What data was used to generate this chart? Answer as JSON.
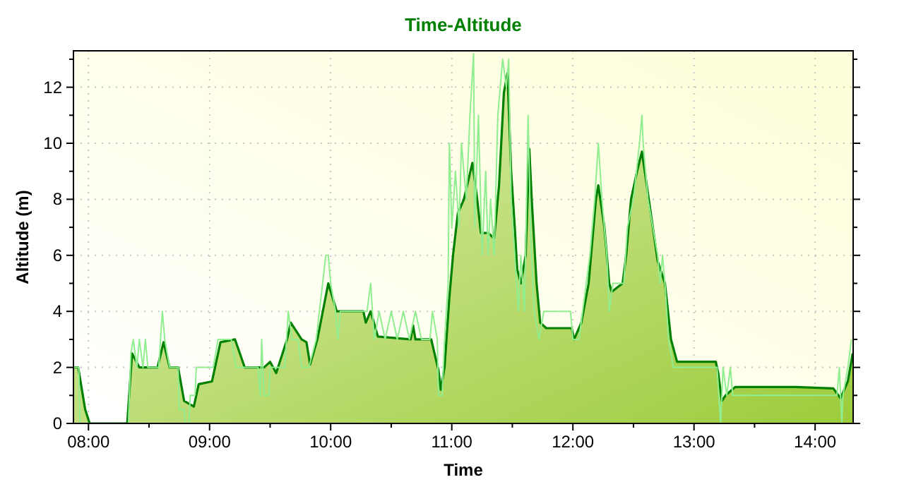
{
  "chart_data": {
    "type": "area",
    "title": "Time-Altitude",
    "xlabel": "Time",
    "ylabel": "Altitude (m)",
    "xlim": [
      7.876,
      14.314
    ],
    "xticks": [
      {
        "value": 8,
        "label": "08:00"
      },
      {
        "value": 8.5,
        "label": null
      },
      {
        "value": 9,
        "label": "09:00"
      },
      {
        "value": 9.5,
        "label": null
      },
      {
        "value": 10,
        "label": "10:00"
      },
      {
        "value": 10.5,
        "label": null
      },
      {
        "value": 11,
        "label": "11:00"
      },
      {
        "value": 11.5,
        "label": null
      },
      {
        "value": 12,
        "label": "12:00"
      },
      {
        "value": 12.5,
        "label": null
      },
      {
        "value": 13,
        "label": "13:00"
      },
      {
        "value": 13.5,
        "label": null
      },
      {
        "value": 14,
        "label": "14:00"
      }
    ],
    "ylim": [
      0,
      13.3
    ],
    "yticks": [
      0,
      {
        "value": 1,
        "label": null
      },
      2,
      {
        "value": 3,
        "label": null
      },
      4,
      {
        "value": 5,
        "label": null
      },
      6,
      {
        "value": 7,
        "label": null
      },
      8,
      {
        "value": 9,
        "label": null
      },
      10,
      {
        "value": 11,
        "label": null
      },
      12,
      {
        "value": 13,
        "label": null
      }
    ],
    "grid": true,
    "series": [
      {
        "color": "#008000",
        "x": [
          7.88,
          7.915,
          7.973,
          8.01,
          8.32,
          8.36,
          8.42,
          8.57,
          8.62,
          8.67,
          8.74,
          8.79,
          8.87,
          8.91,
          9.02,
          9.09,
          9.21,
          9.29,
          9.45,
          9.5,
          9.55,
          9.64,
          9.67,
          9.76,
          9.8,
          9.83,
          9.89,
          9.98,
          10.05,
          10.1,
          10.27,
          10.29,
          10.33,
          10.39,
          10.66,
          10.68,
          10.7,
          10.83,
          10.89,
          10.91,
          10.94,
          10.98,
          11.01,
          11.05,
          11.1,
          11.17,
          11.21,
          11.24,
          11.3,
          11.35,
          11.39,
          11.43,
          11.46,
          11.49,
          11.52,
          11.54,
          11.57,
          11.61,
          11.64,
          11.66,
          11.7,
          11.73,
          11.78,
          11.99,
          12.01,
          12.07,
          12.13,
          12.19,
          12.21,
          12.26,
          12.3,
          12.32,
          12.41,
          12.44,
          12.48,
          12.53,
          12.57,
          12.61,
          12.66,
          12.7,
          12.76,
          12.81,
          12.86,
          13.18,
          13.2,
          13.23,
          13.26,
          13.34,
          13.84,
          14.15,
          14.21,
          14.27,
          14.31
        ],
        "values": [
          2.0,
          2.0,
          0.5,
          0,
          0,
          2.5,
          2.0,
          2.0,
          2.9,
          2.0,
          2.0,
          0.8,
          0.6,
          1.4,
          1.5,
          2.9,
          3.0,
          2.0,
          2.0,
          2.2,
          1.8,
          3.0,
          3.6,
          3.0,
          2.9,
          2.1,
          3.0,
          5.0,
          4.0,
          4.0,
          4.0,
          3.6,
          4.0,
          3.1,
          3.0,
          3.5,
          3.0,
          3.0,
          1.9,
          1.2,
          2.0,
          4.5,
          6.0,
          7.5,
          8.0,
          9.3,
          8.0,
          6.8,
          6.8,
          6.6,
          8.5,
          11.8,
          12.5,
          9.0,
          7.0,
          5.5,
          5.0,
          6.0,
          9.8,
          8.0,
          5.0,
          3.6,
          3.4,
          3.4,
          3.0,
          3.6,
          5.0,
          8.0,
          8.5,
          7.0,
          5.0,
          4.7,
          5.0,
          6.0,
          8.0,
          9.0,
          9.7,
          8.5,
          7.0,
          5.8,
          5.0,
          3.0,
          2.2,
          2.2,
          1.8,
          0.8,
          1.0,
          1.3,
          1.3,
          1.25,
          0.9,
          1.5,
          2.5
        ]
      },
      {
        "type": "line",
        "color": "#90ee90",
        "x": [
          7.88,
          7.92,
          7.93,
          8.33,
          8.35,
          8.37,
          8.4,
          8.42,
          8.45,
          8.47,
          8.49,
          8.58,
          8.61,
          8.63,
          8.67,
          8.74,
          8.75,
          8.79,
          8.8,
          8.83,
          8.84,
          8.88,
          8.89,
          9.03,
          9.07,
          9.18,
          9.22,
          9.4,
          9.42,
          9.43,
          9.45,
          9.49,
          9.5,
          9.62,
          9.65,
          9.68,
          9.73,
          9.76,
          9.82,
          9.88,
          9.96,
          9.98,
          10.0,
          10.04,
          10.06,
          10.08,
          10.3,
          10.33,
          10.36,
          10.4,
          10.45,
          10.5,
          10.55,
          10.6,
          10.65,
          10.7,
          10.75,
          10.82,
          10.84,
          10.88,
          10.89,
          10.92,
          10.94,
          10.97,
          10.98,
          11.0,
          11.03,
          11.06,
          11.08,
          11.12,
          11.15,
          11.18,
          11.19,
          11.22,
          11.25,
          11.28,
          11.3,
          11.32,
          11.35,
          11.38,
          11.4,
          11.42,
          11.45,
          11.47,
          11.49,
          11.52,
          11.55,
          11.57,
          11.6,
          11.63,
          11.65,
          11.68,
          11.72,
          11.76,
          11.98,
          12.0,
          12.05,
          12.08,
          12.14,
          12.18,
          12.21,
          12.24,
          12.28,
          12.3,
          12.33,
          12.42,
          12.45,
          12.5,
          12.55,
          12.57,
          12.58,
          12.62,
          12.66,
          12.7,
          12.72,
          12.74,
          12.76,
          12.79,
          12.83,
          13.19,
          13.22,
          13.24,
          13.27,
          13.3,
          13.32,
          13.34,
          14.18,
          14.2,
          14.22,
          14.23,
          14.27,
          14.3
        ],
        "values": [
          2,
          2,
          0,
          0,
          2.5,
          3,
          2,
          3,
          2,
          3,
          2,
          2,
          4,
          3,
          2,
          2,
          0.5,
          0.5,
          0,
          0,
          1,
          1,
          2,
          2,
          3,
          3,
          2,
          2,
          1,
          3,
          1,
          1,
          2,
          2,
          4,
          3,
          3,
          2,
          2,
          3,
          6,
          6,
          5,
          4,
          3,
          4,
          4,
          5,
          3,
          4,
          3,
          4,
          3,
          4,
          3,
          4,
          3,
          3,
          4,
          3,
          1,
          1,
          3,
          5,
          10,
          7,
          9,
          7,
          10,
          8,
          11,
          13.2,
          7,
          11,
          6,
          9,
          6,
          8,
          6,
          11,
          12,
          13,
          12,
          13,
          8,
          6,
          4,
          6,
          4,
          11,
          7,
          4,
          3,
          4,
          4,
          3,
          3,
          4,
          6,
          8,
          10,
          8,
          6,
          4,
          5,
          5,
          7,
          8,
          10,
          11,
          10,
          8,
          7,
          6,
          5,
          6,
          5,
          3,
          2,
          2,
          0,
          2,
          1,
          2,
          1,
          1,
          1,
          2,
          0,
          1,
          2,
          3
        ]
      }
    ]
  }
}
